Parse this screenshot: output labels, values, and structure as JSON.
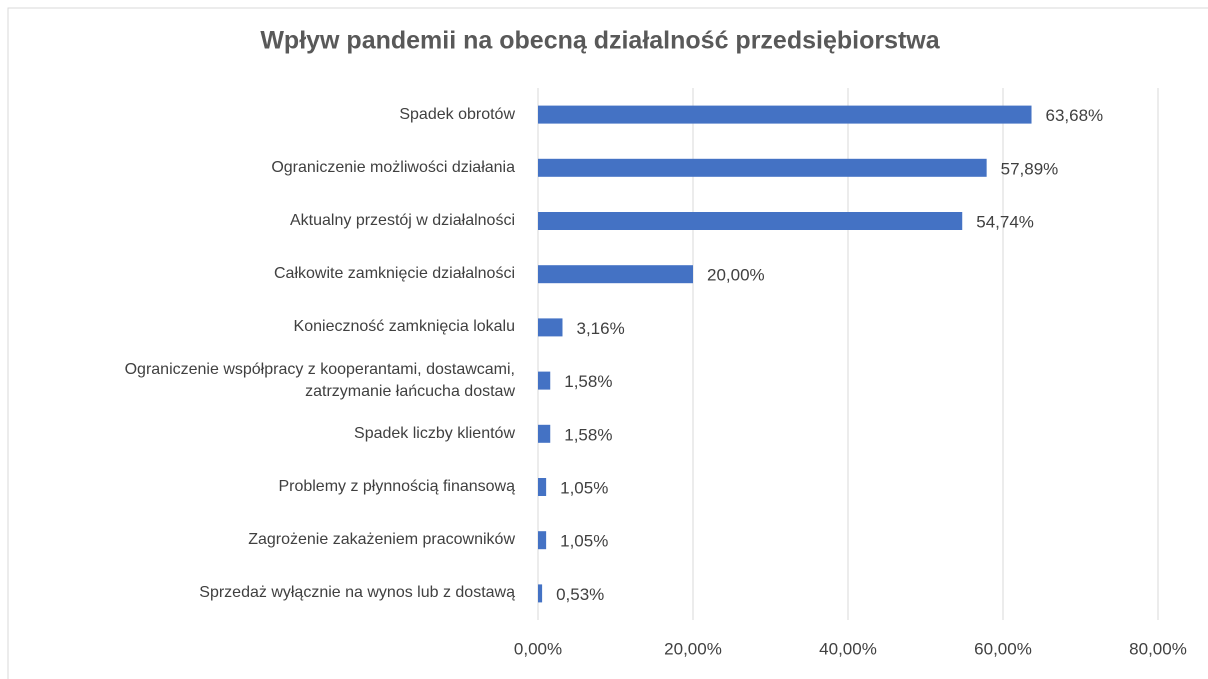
{
  "chart_data": {
    "type": "bar",
    "orientation": "horizontal",
    "title": "Wpływ pandemii na obecną działalność przedsiębiorstwa",
    "categories": [
      "Spadek obrotów",
      "Ograniczenie możliwości działania",
      "Aktualny przestój w działalności",
      "Całkowite zamknięcie działalności",
      "Konieczność zamknięcia lokalu",
      "Ograniczenie współpracy z kooperantami, dostawcami,\nzatrzymanie łańcucha dostaw",
      "Spadek liczby klientów",
      "Problemy z płynnością finansową",
      "Zagrożenie zakażeniem pracowników",
      "Sprzedaż wyłącznie na wynos lub z dostawą"
    ],
    "values": [
      63.68,
      57.89,
      54.74,
      20.0,
      3.16,
      1.58,
      1.58,
      1.05,
      1.05,
      0.53
    ],
    "value_labels": [
      "63,68%",
      "57,89%",
      "54,74%",
      "20,00%",
      "3,16%",
      "1,58%",
      "1,58%",
      "1,05%",
      "1,05%",
      "0,53%"
    ],
    "color": "#4472c4",
    "xlim": [
      0,
      80
    ],
    "xticks": [
      {
        "value": 0,
        "label": "0,00%"
      },
      {
        "value": 20,
        "label": "20,00%"
      },
      {
        "value": 40,
        "label": "40,00%"
      },
      {
        "value": 60,
        "label": "60,00%"
      },
      {
        "value": 80,
        "label": "80,00%"
      }
    ],
    "grid": true
  }
}
